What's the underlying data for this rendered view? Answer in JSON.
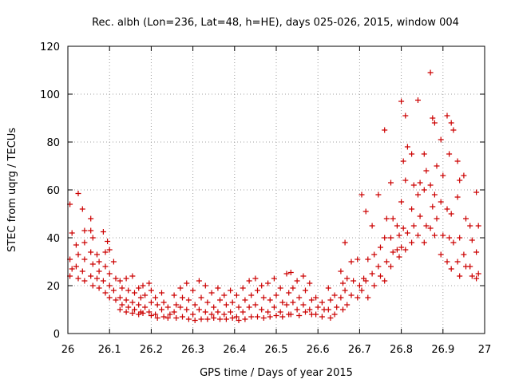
{
  "chart_data": {
    "type": "scatter",
    "title": "Rec. albh (Lon=236, Lat=48, h=HE), days 025-026, 2015, window 004",
    "xlabel": "GPS time / Days of year 2015",
    "ylabel": "STEC from uqrg / TECUs",
    "xlim": [
      26,
      27
    ],
    "ylim": [
      0,
      120
    ],
    "xticks": [
      "26",
      "26.1",
      "26.2",
      "26.3",
      "26.4",
      "26.5",
      "26.6",
      "26.7",
      "26.8",
      "26.9",
      "27"
    ],
    "yticks": [
      "0",
      "20",
      "40",
      "60",
      "80",
      "100",
      "120"
    ],
    "grid": true,
    "marker": "+",
    "color": "#cc0000",
    "series": [
      {
        "points": [
          [
            26.005,
            54
          ],
          [
            26.01,
            42
          ],
          [
            26.005,
            31
          ],
          [
            26.01,
            27
          ],
          [
            26.005,
            24
          ],
          [
            26.025,
            58.5
          ],
          [
            26.02,
            37
          ],
          [
            26.025,
            33
          ],
          [
            26.02,
            28
          ],
          [
            26.025,
            23
          ],
          [
            26.035,
            52
          ],
          [
            26.04,
            43
          ],
          [
            26.04,
            38
          ],
          [
            26.04,
            31
          ],
          [
            26.035,
            26
          ],
          [
            26.04,
            22
          ],
          [
            26.055,
            48
          ],
          [
            26.055,
            43
          ],
          [
            26.06,
            40
          ],
          [
            26.055,
            34
          ],
          [
            26.06,
            29
          ],
          [
            26.055,
            24
          ],
          [
            26.06,
            20
          ],
          [
            26.07,
            33
          ],
          [
            26.075,
            30
          ],
          [
            26.075,
            26
          ],
          [
            26.07,
            23
          ],
          [
            26.075,
            19
          ],
          [
            26.085,
            42.5
          ],
          [
            26.09,
            34
          ],
          [
            26.09,
            28
          ],
          [
            26.085,
            22
          ],
          [
            26.09,
            17
          ],
          [
            26.095,
            38.5
          ],
          [
            26.1,
            35
          ],
          [
            26.1,
            25
          ],
          [
            26.1,
            20
          ],
          [
            26.1,
            15
          ],
          [
            26.11,
            30
          ],
          [
            26.115,
            23
          ],
          [
            26.11,
            18
          ],
          [
            26.115,
            14
          ],
          [
            26.125,
            22
          ],
          [
            26.13,
            19
          ],
          [
            26.125,
            15
          ],
          [
            26.13,
            12
          ],
          [
            26.125,
            10
          ],
          [
            26.14,
            23
          ],
          [
            26.145,
            18
          ],
          [
            26.14,
            14
          ],
          [
            26.145,
            11
          ],
          [
            26.14,
            9
          ],
          [
            26.155,
            24
          ],
          [
            26.16,
            17
          ],
          [
            26.155,
            13
          ],
          [
            26.16,
            10
          ],
          [
            26.155,
            8.5
          ],
          [
            26.17,
            19
          ],
          [
            26.175,
            15
          ],
          [
            26.17,
            12
          ],
          [
            26.175,
            9
          ],
          [
            26.17,
            8
          ],
          [
            26.18,
            20
          ],
          [
            26.185,
            16
          ],
          [
            26.185,
            11
          ],
          [
            26.18,
            8.5
          ],
          [
            26.195,
            21
          ],
          [
            26.2,
            18
          ],
          [
            26.2,
            13
          ],
          [
            26.195,
            9
          ],
          [
            26.2,
            7.5
          ],
          [
            26.21,
            15
          ],
          [
            26.215,
            12
          ],
          [
            26.21,
            8
          ],
          [
            26.215,
            6.5
          ],
          [
            26.225,
            17
          ],
          [
            26.23,
            13
          ],
          [
            26.225,
            10
          ],
          [
            26.23,
            7
          ],
          [
            26.24,
            11
          ],
          [
            26.245,
            8
          ],
          [
            26.24,
            6.5
          ],
          [
            26.255,
            16
          ],
          [
            26.26,
            12
          ],
          [
            26.255,
            9
          ],
          [
            26.26,
            6.5
          ],
          [
            26.27,
            19
          ],
          [
            26.275,
            15
          ],
          [
            26.27,
            11
          ],
          [
            26.275,
            7
          ],
          [
            26.285,
            21
          ],
          [
            26.29,
            14
          ],
          [
            26.285,
            10
          ],
          [
            26.29,
            6
          ],
          [
            26.3,
            18
          ],
          [
            26.305,
            12
          ],
          [
            26.3,
            8
          ],
          [
            26.305,
            5.5
          ],
          [
            26.315,
            22
          ],
          [
            26.32,
            15
          ],
          [
            26.315,
            10
          ],
          [
            26.32,
            6
          ],
          [
            26.33,
            20
          ],
          [
            26.335,
            13
          ],
          [
            26.33,
            9
          ],
          [
            26.335,
            6
          ],
          [
            26.345,
            17
          ],
          [
            26.35,
            11
          ],
          [
            26.345,
            8
          ],
          [
            26.35,
            6.5
          ],
          [
            26.36,
            19
          ],
          [
            26.365,
            14
          ],
          [
            26.36,
            9
          ],
          [
            26.365,
            6
          ],
          [
            26.375,
            16
          ],
          [
            26.38,
            12
          ],
          [
            26.375,
            8
          ],
          [
            26.38,
            6
          ],
          [
            26.39,
            18
          ],
          [
            26.395,
            13
          ],
          [
            26.39,
            9
          ],
          [
            26.395,
            6.5
          ],
          [
            26.405,
            16
          ],
          [
            26.41,
            11
          ],
          [
            26.405,
            7
          ],
          [
            26.41,
            5.5
          ],
          [
            26.42,
            19
          ],
          [
            26.425,
            14
          ],
          [
            26.42,
            9
          ],
          [
            26.425,
            6
          ],
          [
            26.435,
            22
          ],
          [
            26.44,
            16
          ],
          [
            26.435,
            11
          ],
          [
            26.44,
            7
          ],
          [
            26.45,
            23
          ],
          [
            26.455,
            18
          ],
          [
            26.45,
            12
          ],
          [
            26.455,
            7
          ],
          [
            26.465,
            20
          ],
          [
            26.47,
            15
          ],
          [
            26.465,
            10
          ],
          [
            26.47,
            6.5
          ],
          [
            26.48,
            21
          ],
          [
            26.485,
            14
          ],
          [
            26.48,
            9
          ],
          [
            26.485,
            7
          ],
          [
            26.495,
            23
          ],
          [
            26.5,
            16
          ],
          [
            26.495,
            11
          ],
          [
            26.5,
            7.5
          ],
          [
            26.51,
            19
          ],
          [
            26.515,
            13
          ],
          [
            26.51,
            9
          ],
          [
            26.515,
            7
          ],
          [
            26.525,
            25
          ],
          [
            26.53,
            17
          ],
          [
            26.525,
            12
          ],
          [
            26.53,
            8
          ],
          [
            26.535,
            25.5
          ],
          [
            26.54,
            19
          ],
          [
            26.54,
            13
          ],
          [
            26.535,
            8
          ],
          [
            26.55,
            22
          ],
          [
            26.555,
            15
          ],
          [
            26.55,
            10
          ],
          [
            26.555,
            7.5
          ],
          [
            26.565,
            24
          ],
          [
            26.57,
            18
          ],
          [
            26.565,
            12
          ],
          [
            26.57,
            9
          ],
          [
            26.58,
            21
          ],
          [
            26.585,
            14
          ],
          [
            26.58,
            10
          ],
          [
            26.585,
            8
          ],
          [
            26.595,
            15
          ],
          [
            26.6,
            11
          ],
          [
            26.595,
            8
          ],
          [
            26.61,
            13
          ],
          [
            26.615,
            10
          ],
          [
            26.61,
            7
          ],
          [
            26.625,
            19
          ],
          [
            26.63,
            14
          ],
          [
            26.625,
            10
          ],
          [
            26.63,
            6.5
          ],
          [
            26.64,
            16
          ],
          [
            26.645,
            11
          ],
          [
            26.64,
            8
          ],
          [
            26.655,
            26
          ],
          [
            26.66,
            21
          ],
          [
            26.655,
            15
          ],
          [
            26.66,
            10
          ],
          [
            26.665,
            38
          ],
          [
            26.67,
            23
          ],
          [
            26.665,
            18
          ],
          [
            26.67,
            12
          ],
          [
            26.68,
            30
          ],
          [
            26.685,
            22
          ],
          [
            26.68,
            16
          ],
          [
            26.695,
            31
          ],
          [
            26.7,
            20
          ],
          [
            26.695,
            15
          ],
          [
            26.705,
            58
          ],
          [
            26.71,
            23
          ],
          [
            26.705,
            18
          ],
          [
            26.715,
            51
          ],
          [
            26.72,
            31
          ],
          [
            26.715,
            22
          ],
          [
            26.72,
            15
          ],
          [
            26.73,
            45
          ],
          [
            26.735,
            33
          ],
          [
            26.73,
            25
          ],
          [
            26.735,
            20
          ],
          [
            26.745,
            58
          ],
          [
            26.75,
            36
          ],
          [
            26.745,
            28
          ],
          [
            26.75,
            24
          ],
          [
            26.76,
            85
          ],
          [
            26.765,
            48
          ],
          [
            26.76,
            40
          ],
          [
            26.765,
            30
          ],
          [
            26.76,
            22
          ],
          [
            26.775,
            63
          ],
          [
            26.78,
            48
          ],
          [
            26.775,
            40
          ],
          [
            26.78,
            34
          ],
          [
            26.775,
            28
          ],
          [
            26.79,
            45
          ],
          [
            26.795,
            41
          ],
          [
            26.79,
            35
          ],
          [
            26.795,
            32
          ],
          [
            26.8,
            97
          ],
          [
            26.805,
            72
          ],
          [
            26.8,
            55
          ],
          [
            26.805,
            44
          ],
          [
            26.8,
            36
          ],
          [
            26.81,
            91
          ],
          [
            26.815,
            78
          ],
          [
            26.81,
            64
          ],
          [
            26.815,
            42
          ],
          [
            26.81,
            35
          ],
          [
            26.825,
            75
          ],
          [
            26.83,
            62
          ],
          [
            26.825,
            52
          ],
          [
            26.83,
            45
          ],
          [
            26.825,
            38
          ],
          [
            26.84,
            97.5
          ],
          [
            26.845,
            63
          ],
          [
            26.84,
            58
          ],
          [
            26.845,
            49
          ],
          [
            26.84,
            41
          ],
          [
            26.855,
            75
          ],
          [
            26.86,
            68
          ],
          [
            26.855,
            60
          ],
          [
            26.86,
            45
          ],
          [
            26.855,
            38
          ],
          [
            26.87,
            109
          ],
          [
            26.875,
            90
          ],
          [
            26.87,
            62
          ],
          [
            26.875,
            53
          ],
          [
            26.87,
            44
          ],
          [
            26.88,
            88
          ],
          [
            26.885,
            70
          ],
          [
            26.88,
            58
          ],
          [
            26.885,
            48
          ],
          [
            26.88,
            41
          ],
          [
            26.895,
            81
          ],
          [
            26.9,
            66
          ],
          [
            26.895,
            55
          ],
          [
            26.9,
            41
          ],
          [
            26.895,
            33
          ],
          [
            26.91,
            91
          ],
          [
            26.915,
            75
          ],
          [
            26.91,
            52
          ],
          [
            26.915,
            40
          ],
          [
            26.91,
            30
          ],
          [
            26.92,
            88
          ],
          [
            26.925,
            85
          ],
          [
            26.92,
            50
          ],
          [
            26.925,
            38
          ],
          [
            26.92,
            27
          ],
          [
            26.935,
            72
          ],
          [
            26.94,
            64
          ],
          [
            26.935,
            57
          ],
          [
            26.94,
            40
          ],
          [
            26.935,
            30
          ],
          [
            26.94,
            24
          ],
          [
            26.95,
            66
          ],
          [
            26.955,
            48
          ],
          [
            26.95,
            33
          ],
          [
            26.955,
            28
          ],
          [
            26.965,
            45
          ],
          [
            26.97,
            39
          ],
          [
            26.965,
            28
          ],
          [
            26.97,
            24
          ],
          [
            26.98,
            59
          ],
          [
            26.985,
            45
          ],
          [
            26.98,
            34
          ],
          [
            26.985,
            25
          ],
          [
            26.98,
            23
          ]
        ]
      }
    ]
  }
}
